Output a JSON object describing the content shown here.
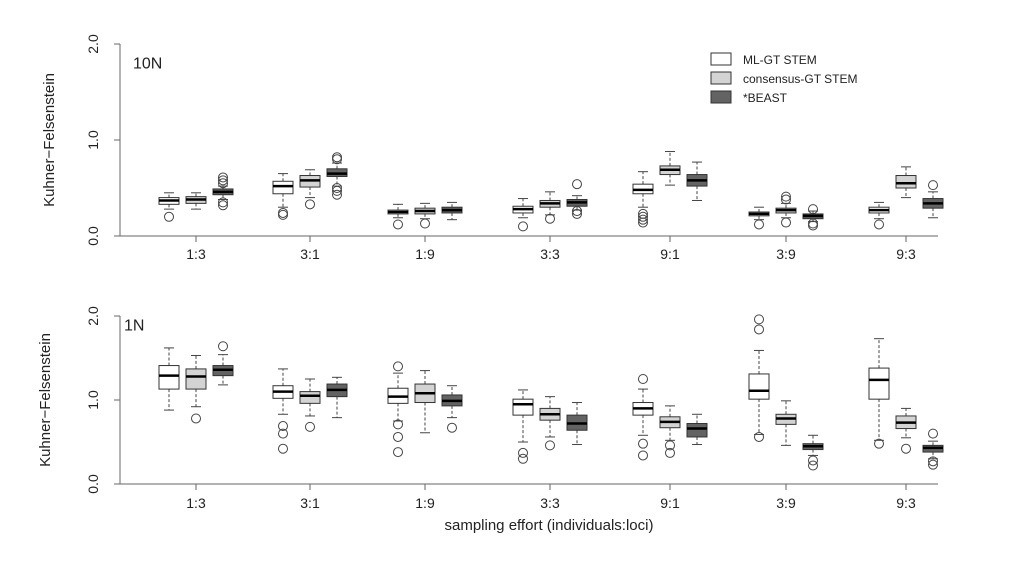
{
  "chart_data": [
    {
      "type": "box",
      "panel_label": "10N",
      "xlabel": "",
      "ylabel": "Kuhner−Felsenstein",
      "ylim": [
        0,
        2
      ],
      "yticks": [
        "0.0",
        "1.0",
        "2.0"
      ],
      "categories": [
        "1:3",
        "3:1",
        "1:9",
        "3:3",
        "9:1",
        "3:9",
        "9:3"
      ],
      "legend": {
        "placement": "top-right",
        "entries": [
          "ML-GT STEM",
          "consensus-GT STEM",
          "*BEAST"
        ]
      },
      "series": [
        {
          "name": "ML-GT STEM",
          "color": "#ffffff",
          "boxes": [
            {
              "whisker_low": 0.28,
              "q1": 0.33,
              "median": 0.37,
              "q3": 0.4,
              "whisker_high": 0.45,
              "outliers": [
                0.2
              ]
            },
            {
              "whisker_low": 0.3,
              "q1": 0.44,
              "median": 0.52,
              "q3": 0.57,
              "whisker_high": 0.65,
              "outliers": [
                0.22,
                0.24
              ]
            },
            {
              "whisker_low": 0.19,
              "q1": 0.23,
              "median": 0.25,
              "q3": 0.27,
              "whisker_high": 0.33,
              "outliers": [
                0.12
              ]
            },
            {
              "whisker_low": 0.19,
              "q1": 0.24,
              "median": 0.28,
              "q3": 0.31,
              "whisker_high": 0.39,
              "outliers": [
                0.1
              ]
            },
            {
              "whisker_low": 0.3,
              "q1": 0.44,
              "median": 0.48,
              "q3": 0.54,
              "whisker_high": 0.67,
              "outliers": [
                0.14,
                0.17,
                0.2,
                0.23
              ]
            },
            {
              "whisker_low": 0.17,
              "q1": 0.21,
              "median": 0.23,
              "q3": 0.25,
              "whisker_high": 0.3,
              "outliers": [
                0.12
              ]
            },
            {
              "whisker_low": 0.18,
              "q1": 0.24,
              "median": 0.27,
              "q3": 0.3,
              "whisker_high": 0.35,
              "outliers": [
                0.12
              ]
            }
          ]
        },
        {
          "name": "consensus-GT STEM",
          "color": "#d3d3d3",
          "boxes": [
            {
              "whisker_low": 0.28,
              "q1": 0.34,
              "median": 0.38,
              "q3": 0.41,
              "whisker_high": 0.45,
              "outliers": []
            },
            {
              "whisker_low": 0.4,
              "q1": 0.51,
              "median": 0.58,
              "q3": 0.63,
              "whisker_high": 0.69,
              "outliers": [
                0.33
              ]
            },
            {
              "whisker_low": 0.18,
              "q1": 0.23,
              "median": 0.26,
              "q3": 0.29,
              "whisker_high": 0.34,
              "outliers": [
                0.13
              ]
            },
            {
              "whisker_low": 0.22,
              "q1": 0.3,
              "median": 0.34,
              "q3": 0.37,
              "whisker_high": 0.46,
              "outliers": [
                0.18
              ]
            },
            {
              "whisker_low": 0.53,
              "q1": 0.64,
              "median": 0.69,
              "q3": 0.73,
              "whisker_high": 0.88,
              "outliers": []
            },
            {
              "whisker_low": 0.19,
              "q1": 0.24,
              "median": 0.27,
              "q3": 0.29,
              "whisker_high": 0.34,
              "outliers": [
                0.14,
                0.38,
                0.41
              ]
            },
            {
              "whisker_low": 0.4,
              "q1": 0.5,
              "median": 0.55,
              "q3": 0.63,
              "whisker_high": 0.72,
              "outliers": []
            }
          ]
        },
        {
          "name": "*BEAST",
          "color": "#636363",
          "boxes": [
            {
              "whisker_low": 0.38,
              "q1": 0.43,
              "median": 0.46,
              "q3": 0.49,
              "whisker_high": 0.52,
              "outliers": [
                0.32,
                0.35,
                0.55,
                0.58,
                0.61
              ]
            },
            {
              "whisker_low": 0.52,
              "q1": 0.62,
              "median": 0.65,
              "q3": 0.7,
              "whisker_high": 0.76,
              "outliers": [
                0.43,
                0.47,
                0.5,
                0.8,
                0.82
              ]
            },
            {
              "whisker_low": 0.17,
              "q1": 0.24,
              "median": 0.27,
              "q3": 0.3,
              "whisker_high": 0.35,
              "outliers": []
            },
            {
              "whisker_low": 0.27,
              "q1": 0.31,
              "median": 0.35,
              "q3": 0.38,
              "whisker_high": 0.42,
              "outliers": [
                0.23,
                0.26,
                0.54
              ]
            },
            {
              "whisker_low": 0.37,
              "q1": 0.52,
              "median": 0.58,
              "q3": 0.64,
              "whisker_high": 0.77,
              "outliers": []
            },
            {
              "whisker_low": 0.15,
              "q1": 0.18,
              "median": 0.21,
              "q3": 0.23,
              "whisker_high": 0.26,
              "outliers": [
                0.11,
                0.13,
                0.28
              ]
            },
            {
              "whisker_low": 0.19,
              "q1": 0.29,
              "median": 0.34,
              "q3": 0.39,
              "whisker_high": 0.46,
              "outliers": [
                0.53
              ]
            }
          ]
        }
      ]
    },
    {
      "type": "box",
      "panel_label": "1N",
      "xlabel": "sampling effort (individuals:loci)",
      "ylabel": "Kuhner−Felsenstein",
      "ylim": [
        0,
        2
      ],
      "yticks": [
        "0.0",
        "1.0",
        "2.0"
      ],
      "categories": [
        "1:3",
        "3:1",
        "1:9",
        "3:3",
        "9:1",
        "3:9",
        "9:3"
      ],
      "series": [
        {
          "name": "ML-GT STEM",
          "color": "#ffffff",
          "boxes": [
            {
              "whisker_low": 0.88,
              "q1": 1.13,
              "median": 1.29,
              "q3": 1.41,
              "whisker_high": 1.62,
              "outliers": []
            },
            {
              "whisker_low": 0.83,
              "q1": 1.02,
              "median": 1.1,
              "q3": 1.17,
              "whisker_high": 1.37,
              "outliers": [
                0.42,
                0.6,
                0.69
              ]
            },
            {
              "whisker_low": 0.75,
              "q1": 0.96,
              "median": 1.04,
              "q3": 1.14,
              "whisker_high": 1.32,
              "outliers": [
                0.38,
                0.56,
                0.71,
                1.4
              ]
            },
            {
              "whisker_low": 0.5,
              "q1": 0.82,
              "median": 0.95,
              "q3": 1.01,
              "whisker_high": 1.12,
              "outliers": [
                0.3,
                0.37
              ]
            },
            {
              "whisker_low": 0.58,
              "q1": 0.82,
              "median": 0.9,
              "q3": 0.97,
              "whisker_high": 1.13,
              "outliers": [
                0.34,
                0.48,
                1.25
              ]
            },
            {
              "whisker_low": 0.59,
              "q1": 1.01,
              "median": 1.11,
              "q3": 1.31,
              "whisker_high": 1.59,
              "outliers": [
                0.56,
                1.84,
                1.96
              ]
            },
            {
              "whisker_low": 0.52,
              "q1": 1.01,
              "median": 1.24,
              "q3": 1.38,
              "whisker_high": 1.73,
              "outliers": [
                0.48
              ]
            }
          ]
        },
        {
          "name": "consensus-GT STEM",
          "color": "#d3d3d3",
          "boxes": [
            {
              "whisker_low": 0.92,
              "q1": 1.13,
              "median": 1.28,
              "q3": 1.37,
              "whisker_high": 1.53,
              "outliers": [
                0.78
              ]
            },
            {
              "whisker_low": 0.81,
              "q1": 0.96,
              "median": 1.05,
              "q3": 1.1,
              "whisker_high": 1.25,
              "outliers": [
                0.68
              ]
            },
            {
              "whisker_low": 0.61,
              "q1": 0.97,
              "median": 1.08,
              "q3": 1.19,
              "whisker_high": 1.35,
              "outliers": []
            },
            {
              "whisker_low": 0.56,
              "q1": 0.76,
              "median": 0.83,
              "q3": 0.9,
              "whisker_high": 1.04,
              "outliers": [
                0.46
              ]
            },
            {
              "whisker_low": 0.52,
              "q1": 0.67,
              "median": 0.74,
              "q3": 0.8,
              "whisker_high": 0.93,
              "outliers": [
                0.37,
                0.46
              ]
            },
            {
              "whisker_low": 0.46,
              "q1": 0.71,
              "median": 0.78,
              "q3": 0.83,
              "whisker_high": 0.99,
              "outliers": []
            },
            {
              "whisker_low": 0.55,
              "q1": 0.66,
              "median": 0.73,
              "q3": 0.81,
              "whisker_high": 0.9,
              "outliers": [
                0.42
              ]
            }
          ]
        },
        {
          "name": "*BEAST",
          "color": "#636363",
          "boxes": [
            {
              "whisker_low": 1.18,
              "q1": 1.29,
              "median": 1.36,
              "q3": 1.41,
              "whisker_high": 1.54,
              "outliers": [
                1.64
              ]
            },
            {
              "whisker_low": 0.79,
              "q1": 1.04,
              "median": 1.12,
              "q3": 1.19,
              "whisker_high": 1.27,
              "outliers": []
            },
            {
              "whisker_low": 0.79,
              "q1": 0.93,
              "median": 0.99,
              "q3": 1.06,
              "whisker_high": 1.17,
              "outliers": [
                0.67
              ]
            },
            {
              "whisker_low": 0.47,
              "q1": 0.64,
              "median": 0.72,
              "q3": 0.82,
              "whisker_high": 0.97,
              "outliers": []
            },
            {
              "whisker_low": 0.47,
              "q1": 0.56,
              "median": 0.66,
              "q3": 0.72,
              "whisker_high": 0.83,
              "outliers": []
            },
            {
              "whisker_low": 0.34,
              "q1": 0.41,
              "median": 0.45,
              "q3": 0.48,
              "whisker_high": 0.58,
              "outliers": [
                0.22,
                0.28
              ]
            },
            {
              "whisker_low": 0.3,
              "q1": 0.38,
              "median": 0.43,
              "q3": 0.46,
              "whisker_high": 0.51,
              "outliers": [
                0.23,
                0.27,
                0.6
              ]
            }
          ]
        }
      ]
    }
  ]
}
